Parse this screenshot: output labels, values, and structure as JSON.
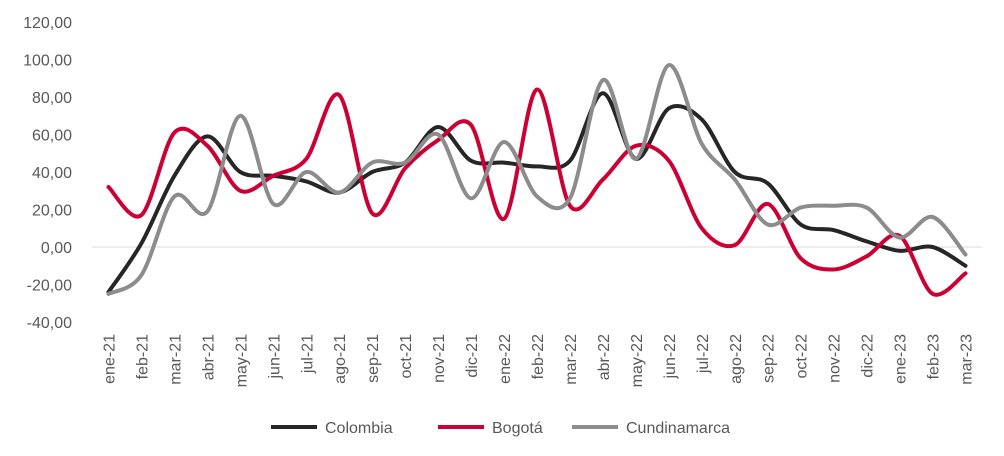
{
  "chart_data": {
    "type": "line",
    "title": "",
    "xlabel": "",
    "ylabel": "",
    "ylim": [
      -40,
      120
    ],
    "y_ticks": [
      "120,00",
      "100,00",
      "80,00",
      "60,00",
      "40,00",
      "20,00",
      "0,00",
      "-20,00",
      "-40,00"
    ],
    "grid": "zero line only",
    "legend_position": "bottom",
    "categories": [
      "ene-21",
      "feb-21",
      "mar-21",
      "abr-21",
      "may-21",
      "jun-21",
      "jul-21",
      "ago-21",
      "sep-21",
      "oct-21",
      "nov-21",
      "dic-21",
      "ene-22",
      "feb-22",
      "mar-22",
      "abr-22",
      "may-22",
      "jun-22",
      "jul-22",
      "ago-22",
      "sep-22",
      "oct-22",
      "nov-22",
      "dic-22",
      "ene-23",
      "feb-23",
      "mar-23"
    ],
    "series": [
      {
        "name": "Colombia",
        "color": "#262626",
        "values": [
          -24,
          2,
          38,
          59,
          40,
          38,
          35,
          29,
          40,
          45,
          64,
          46,
          45,
          43,
          46,
          82,
          47,
          74,
          68,
          40,
          34,
          12,
          9,
          3,
          -2,
          0,
          -10
        ]
      },
      {
        "name": "Bogotá",
        "color": "#cc0033",
        "values": [
          32,
          17,
          61,
          54,
          30,
          38,
          47,
          81,
          18,
          42,
          57,
          65,
          15,
          84,
          22,
          36,
          54,
          46,
          10,
          1,
          23,
          -6,
          -12,
          -5,
          6,
          -25,
          -14
        ]
      },
      {
        "name": "Cundinamarca",
        "color": "#8c8c8c",
        "values": [
          -25,
          -15,
          27,
          19,
          70,
          23,
          40,
          29,
          45,
          45,
          60,
          26,
          56,
          27,
          26,
          89,
          47,
          97,
          55,
          36,
          12,
          21,
          22,
          21,
          5,
          16,
          -4
        ]
      }
    ]
  }
}
